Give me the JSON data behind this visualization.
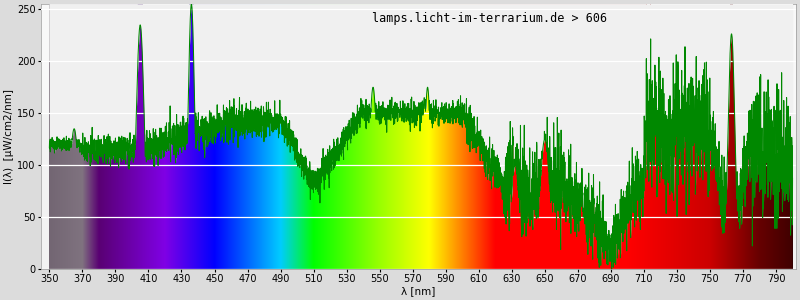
{
  "title": "lamps.licht-im-terrarium.de > 606",
  "xlabel": "λ [nm]",
  "ylabel": "I(λ)  [µW/cm2/nm]",
  "xlim": [
    345,
    802
  ],
  "ylim": [
    0,
    255
  ],
  "yticks": [
    0,
    50,
    100,
    150,
    200,
    250
  ],
  "xticks": [
    350,
    370,
    390,
    410,
    430,
    450,
    470,
    490,
    510,
    530,
    550,
    570,
    590,
    610,
    630,
    650,
    670,
    690,
    710,
    730,
    750,
    770,
    790
  ],
  "background_color": "#dcdcdc",
  "plot_bg_color": "#f2f2f2",
  "plot_top_bg_color": "#e8e8e8",
  "grid_color": "#ffffff",
  "green_line_color": "#008800",
  "spectrum_start_nm": 350,
  "spectrum_end_nm": 800,
  "title_fontsize": 8.5,
  "axis_label_fontsize": 7.5,
  "tick_fontsize": 7,
  "figsize": [
    8.0,
    3.0
  ],
  "dpi": 100
}
